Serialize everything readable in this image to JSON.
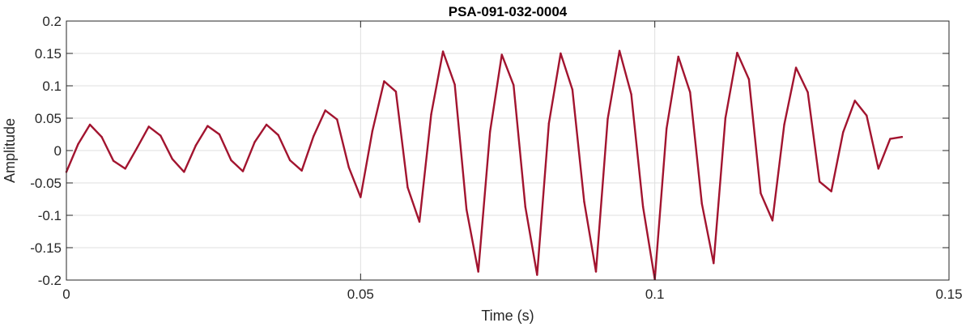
{
  "chart_data": {
    "type": "line",
    "title": "PSA-091-032-0004",
    "xlabel": "Time (s)",
    "ylabel": "Amplitude",
    "xlim": [
      0,
      0.15
    ],
    "ylim": [
      -0.2,
      0.2
    ],
    "x_ticks": [
      {
        "value": 0,
        "label": "0"
      },
      {
        "value": 0.05,
        "label": "0.05"
      },
      {
        "value": 0.1,
        "label": "0.1"
      },
      {
        "value": 0.15,
        "label": "0.15"
      }
    ],
    "y_ticks": [
      {
        "value": 0.2,
        "label": "0.2"
      },
      {
        "value": 0.15,
        "label": "0.15"
      },
      {
        "value": 0.1,
        "label": "0.1"
      },
      {
        "value": 0.05,
        "label": "0.05"
      },
      {
        "value": 0,
        "label": "0"
      },
      {
        "value": -0.05,
        "label": "-0.05"
      },
      {
        "value": -0.1,
        "label": "-0.1"
      },
      {
        "value": -0.15,
        "label": "-0.15"
      },
      {
        "value": -0.2,
        "label": "-0.2"
      }
    ],
    "grid": true,
    "series": [
      {
        "color": "#A2142F",
        "x": [
          0.0,
          0.002,
          0.004,
          0.006,
          0.008,
          0.01,
          0.012,
          0.014,
          0.016,
          0.018,
          0.02,
          0.022,
          0.024,
          0.026,
          0.028,
          0.03,
          0.032,
          0.034,
          0.036,
          0.038,
          0.04,
          0.042,
          0.044,
          0.046,
          0.048,
          0.05,
          0.052,
          0.054,
          0.056,
          0.058,
          0.06,
          0.062,
          0.064,
          0.066,
          0.068,
          0.07,
          0.072,
          0.074,
          0.076,
          0.078,
          0.08,
          0.082,
          0.084,
          0.086,
          0.088,
          0.09,
          0.092,
          0.094,
          0.096,
          0.098,
          0.1,
          0.102,
          0.104,
          0.106,
          0.108,
          0.11,
          0.112,
          0.114,
          0.116,
          0.118,
          0.12,
          0.122,
          0.124,
          0.126,
          0.128,
          0.13,
          0.132,
          0.134,
          0.136,
          0.138,
          0.14,
          0.142
        ],
        "y": [
          -0.033,
          0.01,
          0.04,
          0.021,
          -0.016,
          -0.028,
          0.004,
          0.037,
          0.023,
          -0.013,
          -0.033,
          0.008,
          0.038,
          0.025,
          -0.015,
          -0.032,
          0.013,
          0.04,
          0.024,
          -0.015,
          -0.031,
          0.022,
          0.062,
          0.048,
          -0.026,
          -0.072,
          0.03,
          0.107,
          0.091,
          -0.057,
          -0.11,
          0.056,
          0.153,
          0.102,
          -0.091,
          -0.187,
          0.029,
          0.148,
          0.101,
          -0.087,
          -0.192,
          0.042,
          0.15,
          0.094,
          -0.079,
          -0.187,
          0.049,
          0.154,
          0.087,
          -0.087,
          -0.199,
          0.034,
          0.145,
          0.09,
          -0.082,
          -0.174,
          0.05,
          0.151,
          0.11,
          -0.066,
          -0.108,
          0.04,
          0.128,
          0.09,
          -0.048,
          -0.063,
          0.028,
          0.077,
          0.054,
          -0.028,
          0.018,
          0.021
        ]
      }
    ]
  }
}
